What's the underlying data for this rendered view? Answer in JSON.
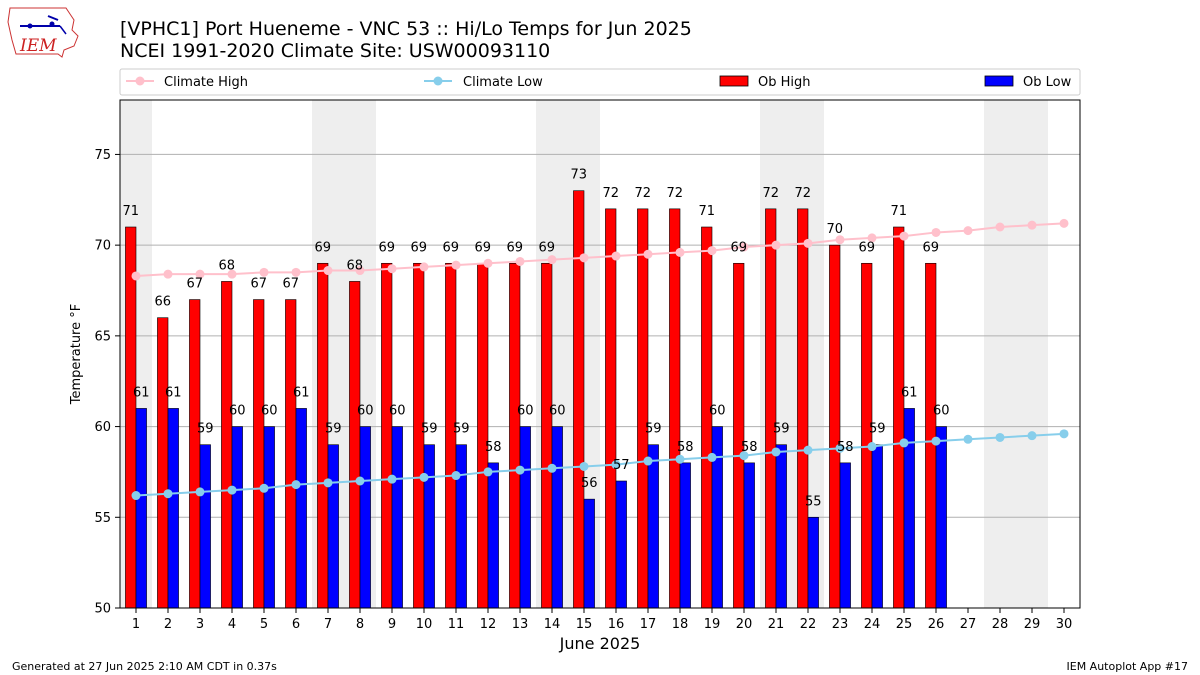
{
  "header": {
    "title_line1": "[VPHC1] Port Hueneme - VNC 53 :: Hi/Lo Temps for Jun 2025",
    "title_line2": "NCEI 1991-2020 Climate Site: USW00093110",
    "logo_text": "IEM"
  },
  "footer": {
    "left": "Generated at 27 Jun 2025 2:10 AM CDT in 0.37s",
    "right": "IEM Autoplot App #17"
  },
  "colors": {
    "ob_high": "#ff0000",
    "ob_low": "#0000ff",
    "climate_high": "#ffc0cb",
    "climate_low": "#87ceeb",
    "weekend_band": "#eeeeee",
    "grid": "#b0b0b0"
  },
  "chart_data": {
    "type": "bar",
    "xlabel": "June 2025",
    "ylabel": "Temperature °F",
    "ylim": [
      50,
      78
    ],
    "yticks": [
      50,
      55,
      60,
      65,
      70,
      75
    ],
    "grid": "horizontal",
    "legend_placement": "top, above plot",
    "legend": [
      "Climate High",
      "Climate Low",
      "Ob High",
      "Ob Low"
    ],
    "days": [
      1,
      2,
      3,
      4,
      5,
      6,
      7,
      8,
      9,
      10,
      11,
      12,
      13,
      14,
      15,
      16,
      17,
      18,
      19,
      20,
      21,
      22,
      23,
      24,
      25,
      26,
      27,
      28,
      29,
      30
    ],
    "shaded_days": [
      [
        1,
        1
      ],
      [
        7,
        8
      ],
      [
        14,
        15
      ],
      [
        21,
        22
      ],
      [
        28,
        29
      ]
    ],
    "series": [
      {
        "name": "Ob High",
        "type": "bar",
        "values": [
          71,
          66,
          67,
          68,
          67,
          67,
          69,
          68,
          69,
          69,
          69,
          69,
          69,
          69,
          73,
          72,
          72,
          72,
          71,
          69,
          72,
          72,
          70,
          69,
          71,
          69,
          null,
          null,
          null,
          null
        ]
      },
      {
        "name": "Ob Low",
        "type": "bar",
        "values": [
          61,
          61,
          59,
          60,
          60,
          61,
          59,
          60,
          60,
          59,
          59,
          58,
          60,
          60,
          56,
          57,
          59,
          58,
          60,
          58,
          59,
          55,
          58,
          59,
          61,
          60,
          null,
          null,
          null,
          null
        ]
      },
      {
        "name": "Climate High",
        "type": "line",
        "values": [
          68.3,
          68.4,
          68.4,
          68.4,
          68.5,
          68.5,
          68.6,
          68.6,
          68.7,
          68.8,
          68.9,
          69.0,
          69.1,
          69.2,
          69.3,
          69.4,
          69.5,
          69.6,
          69.7,
          69.9,
          70.0,
          70.1,
          70.3,
          70.4,
          70.5,
          70.7,
          70.8,
          71.0,
          71.1,
          71.2
        ]
      },
      {
        "name": "Climate Low",
        "type": "line",
        "values": [
          56.2,
          56.3,
          56.4,
          56.5,
          56.6,
          56.8,
          56.9,
          57.0,
          57.1,
          57.2,
          57.3,
          57.5,
          57.6,
          57.7,
          57.8,
          57.9,
          58.1,
          58.2,
          58.3,
          58.4,
          58.6,
          58.7,
          58.8,
          58.9,
          59.1,
          59.2,
          59.3,
          59.4,
          59.5,
          59.6
        ]
      }
    ]
  }
}
